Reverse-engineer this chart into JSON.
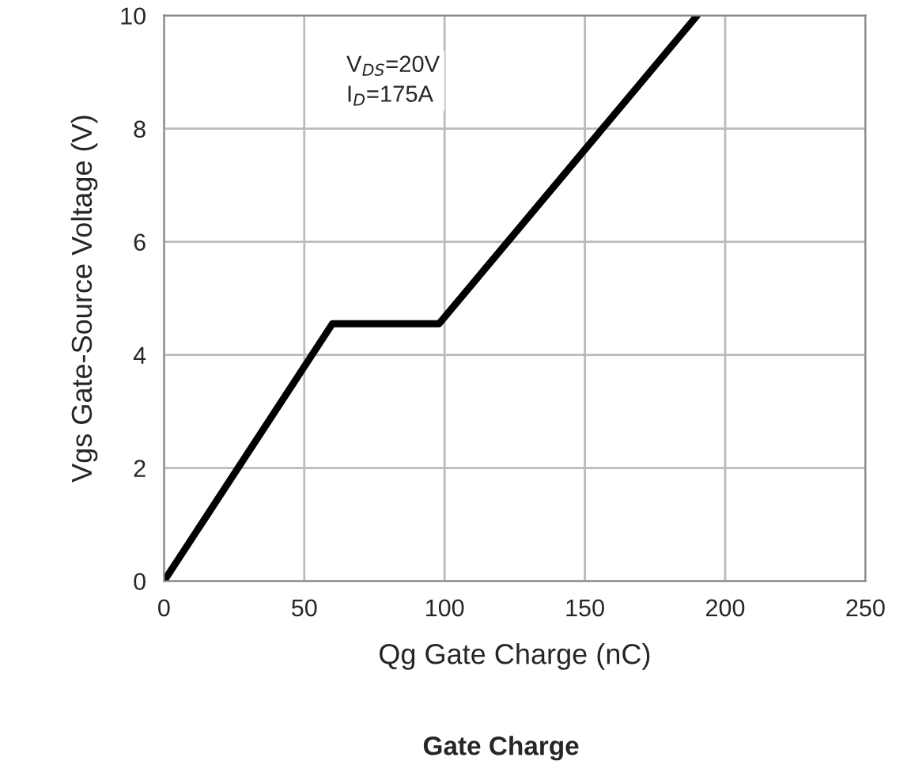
{
  "chart_data": {
    "type": "line",
    "title": "Gate Charge",
    "xlabel": "Qg Gate Charge (nC)",
    "ylabel": "Vgs Gate-Source Voltage (V)",
    "x": [
      0,
      60,
      98,
      190
    ],
    "series": [
      {
        "color": "#000000",
        "values": [
          0,
          4.55,
          4.55,
          10
        ]
      }
    ],
    "xlim": [
      0,
      250
    ],
    "xticks": [
      0,
      50,
      100,
      150,
      200,
      250
    ],
    "ylim": [
      0,
      10
    ],
    "yticks": [
      0,
      2,
      4,
      6,
      8,
      10
    ],
    "grid": true,
    "annotations": [
      "V$_{DS}$=20V\nI$_{D}$=175A"
    ]
  }
}
